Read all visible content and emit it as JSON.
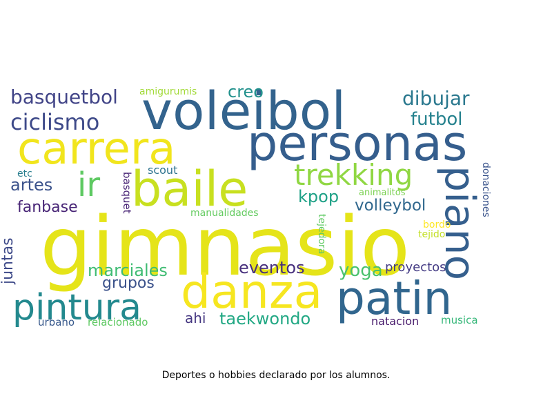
{
  "caption": "Deportes o hobbies declarado por los alumnos.",
  "words": [
    {
      "text": "gimnasio",
      "color": "#e5e419"
    },
    {
      "text": "voleibol",
      "color": "#33638d"
    },
    {
      "text": "personas",
      "color": "#355e8d"
    },
    {
      "text": "carrera",
      "color": "#f1e51d"
    },
    {
      "text": "baile",
      "color": "#c8e020"
    },
    {
      "text": "danza",
      "color": "#f6e620"
    },
    {
      "text": "patin",
      "color": "#31668e"
    },
    {
      "text": "pintura",
      "color": "#23898e"
    },
    {
      "text": "piano",
      "color": "#355f8d"
    },
    {
      "text": "trekking",
      "color": "#90d743"
    },
    {
      "text": "ir",
      "color": "#5ec962"
    },
    {
      "text": "basquetbol",
      "color": "#414487"
    },
    {
      "text": "ciclismo",
      "color": "#3e4a89"
    },
    {
      "text": "dibujar",
      "color": "#2a788e"
    },
    {
      "text": "futbol",
      "color": "#26828e"
    },
    {
      "text": "creo",
      "color": "#21918c"
    },
    {
      "text": "artes",
      "color": "#3b528b"
    },
    {
      "text": "kpop",
      "color": "#1fa187"
    },
    {
      "text": "volleybol",
      "color": "#31688e"
    },
    {
      "text": "fanbase",
      "color": "#482576"
    },
    {
      "text": "marciales",
      "color": "#3fbc73"
    },
    {
      "text": "eventos",
      "color": "#472f7d"
    },
    {
      "text": "yoga",
      "color": "#4ac16d"
    },
    {
      "text": "grupos",
      "color": "#3b528b"
    },
    {
      "text": "juntas",
      "color": "#3e4a89"
    },
    {
      "text": "ahi",
      "color": "#453781"
    },
    {
      "text": "taekwondo",
      "color": "#22a884"
    },
    {
      "text": "proyectos",
      "color": "#443b84"
    },
    {
      "text": "natacion",
      "color": "#481a6c"
    },
    {
      "text": "musica",
      "color": "#35b779"
    },
    {
      "text": "urbano",
      "color": "#38598c"
    },
    {
      "text": "relacionado",
      "color": "#5ec962"
    },
    {
      "text": "amigurumis",
      "color": "#a2da37"
    },
    {
      "text": "scout",
      "color": "#2c728e"
    },
    {
      "text": "etc",
      "color": "#287d8e"
    },
    {
      "text": "basquet",
      "color": "#482475"
    },
    {
      "text": "tejedora",
      "color": "#5ec962"
    },
    {
      "text": "manualidades",
      "color": "#63cb5f"
    },
    {
      "text": "animalitos",
      "color": "#7ad151"
    },
    {
      "text": "donaciones",
      "color": "#3a548c"
    },
    {
      "text": "bordo",
      "color": "#fde725"
    },
    {
      "text": "tejido",
      "color": "#c2df23"
    }
  ]
}
